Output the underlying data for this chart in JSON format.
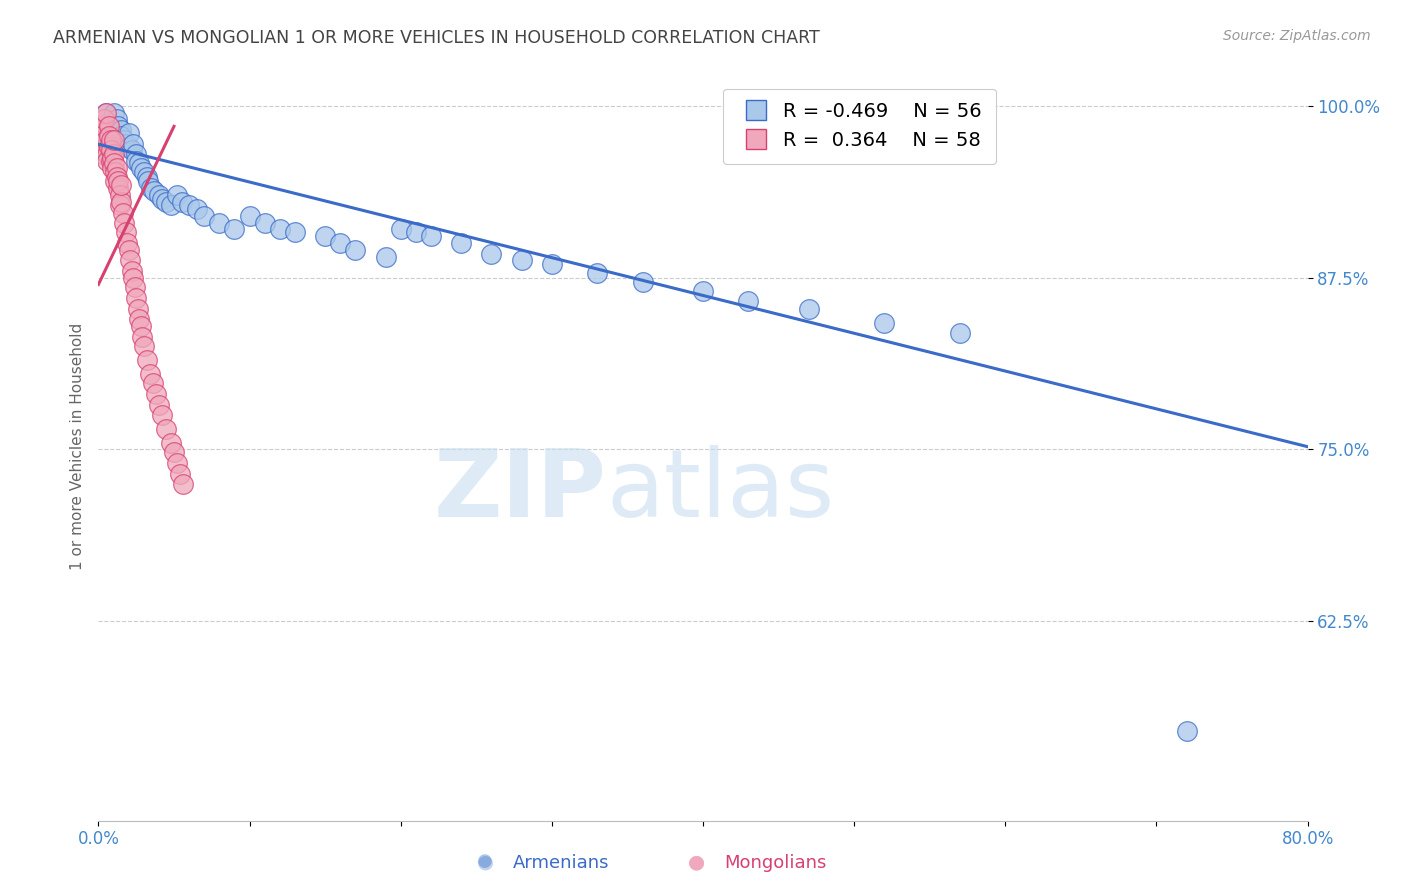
{
  "title": "ARMENIAN VS MONGOLIAN 1 OR MORE VEHICLES IN HOUSEHOLD CORRELATION CHART",
  "source": "Source: ZipAtlas.com",
  "xlabel_armenians": "Armenians",
  "xlabel_mongolians": "Mongolians",
  "ylabel": "1 or more Vehicles in Household",
  "xmin": 0.0,
  "xmax": 0.8,
  "ymin": 0.48,
  "ymax": 1.025,
  "yticks": [
    0.625,
    0.75,
    0.875,
    1.0
  ],
  "ytick_labels": [
    "62.5%",
    "75.0%",
    "87.5%",
    "100.0%"
  ],
  "xticks": [
    0.0,
    0.1,
    0.2,
    0.3,
    0.4,
    0.5,
    0.6,
    0.7,
    0.8
  ],
  "xtick_labels": [
    "0.0%",
    "",
    "",
    "",
    "",
    "",
    "",
    "",
    "80.0%"
  ],
  "armenian_color": "#aac8ea",
  "mongolian_color": "#f0a8bc",
  "armenian_line_color": "#3a6bc8",
  "mongolian_line_color": "#d84070",
  "R_armenian": -0.469,
  "N_armenian": 56,
  "R_mongolian": 0.364,
  "N_mongolian": 58,
  "watermark_zip": "ZIP",
  "watermark_atlas": "atlas",
  "background_color": "#ffffff",
  "grid_color": "#cccccc",
  "title_color": "#444444",
  "axis_label_color": "#666666",
  "tick_label_color": "#4488cc",
  "arm_trend_x0": 0.0,
  "arm_trend_y0": 0.972,
  "arm_trend_x1": 0.8,
  "arm_trend_y1": 0.752,
  "mon_trend_x0": 0.0,
  "mon_trend_y0": 0.87,
  "mon_trend_x1": 0.05,
  "mon_trend_y1": 0.985,
  "armenian_x": [
    0.005,
    0.007,
    0.01,
    0.012,
    0.013,
    0.015,
    0.015,
    0.017,
    0.018,
    0.02,
    0.02,
    0.022,
    0.023,
    0.025,
    0.025,
    0.027,
    0.028,
    0.03,
    0.032,
    0.033,
    0.035,
    0.037,
    0.04,
    0.042,
    0.045,
    0.048,
    0.052,
    0.055,
    0.06,
    0.065,
    0.07,
    0.08,
    0.09,
    0.1,
    0.11,
    0.12,
    0.13,
    0.15,
    0.16,
    0.17,
    0.19,
    0.2,
    0.21,
    0.22,
    0.24,
    0.26,
    0.28,
    0.3,
    0.33,
    0.36,
    0.4,
    0.43,
    0.47,
    0.52,
    0.57,
    0.72
  ],
  "armenian_y": [
    0.995,
    0.988,
    0.995,
    0.99,
    0.985,
    0.982,
    0.978,
    0.975,
    0.972,
    0.97,
    0.98,
    0.968,
    0.972,
    0.965,
    0.96,
    0.958,
    0.955,
    0.952,
    0.948,
    0.945,
    0.94,
    0.938,
    0.935,
    0.932,
    0.93,
    0.928,
    0.935,
    0.93,
    0.928,
    0.925,
    0.92,
    0.915,
    0.91,
    0.92,
    0.915,
    0.91,
    0.908,
    0.905,
    0.9,
    0.895,
    0.89,
    0.91,
    0.908,
    0.905,
    0.9,
    0.892,
    0.888,
    0.885,
    0.878,
    0.872,
    0.865,
    0.858,
    0.852,
    0.842,
    0.835,
    0.545
  ],
  "mongolian_x": [
    0.002,
    0.003,
    0.003,
    0.004,
    0.004,
    0.005,
    0.005,
    0.005,
    0.006,
    0.006,
    0.007,
    0.007,
    0.007,
    0.008,
    0.008,
    0.008,
    0.009,
    0.009,
    0.01,
    0.01,
    0.01,
    0.011,
    0.011,
    0.012,
    0.012,
    0.013,
    0.013,
    0.014,
    0.014,
    0.015,
    0.015,
    0.016,
    0.017,
    0.018,
    0.019,
    0.02,
    0.021,
    0.022,
    0.023,
    0.024,
    0.025,
    0.026,
    0.027,
    0.028,
    0.029,
    0.03,
    0.032,
    0.034,
    0.036,
    0.038,
    0.04,
    0.042,
    0.045,
    0.048,
    0.05,
    0.052,
    0.054,
    0.056
  ],
  "mongolian_y": [
    0.985,
    0.965,
    0.975,
    0.98,
    0.99,
    0.97,
    0.975,
    0.995,
    0.965,
    0.96,
    0.985,
    0.978,
    0.97,
    0.975,
    0.968,
    0.96,
    0.962,
    0.955,
    0.965,
    0.958,
    0.975,
    0.952,
    0.945,
    0.955,
    0.948,
    0.94,
    0.945,
    0.935,
    0.928,
    0.93,
    0.942,
    0.922,
    0.915,
    0.908,
    0.9,
    0.895,
    0.888,
    0.88,
    0.875,
    0.868,
    0.86,
    0.852,
    0.845,
    0.84,
    0.832,
    0.825,
    0.815,
    0.805,
    0.798,
    0.79,
    0.782,
    0.775,
    0.765,
    0.755,
    0.748,
    0.74,
    0.732,
    0.725
  ]
}
